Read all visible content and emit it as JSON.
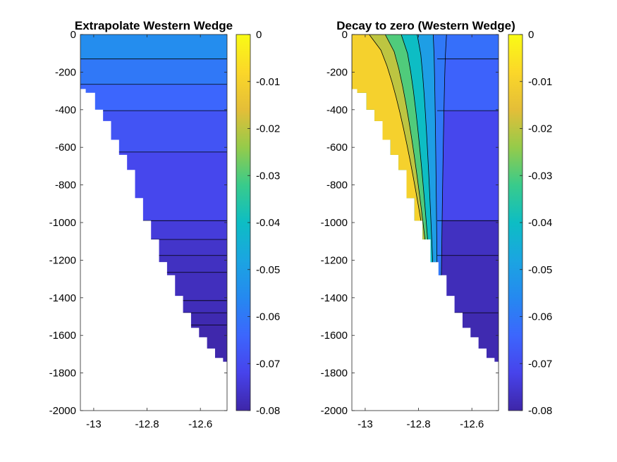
{
  "chart_data": [
    {
      "type": "heatmap",
      "title": "Extrapolate Western Wedge",
      "xlim": [
        -13.05,
        -12.5
      ],
      "ylim": [
        -2000,
        0
      ],
      "xticks": [
        -13,
        -12.8,
        -12.6
      ],
      "xtick_labels": [
        "-13",
        "-12.8",
        "-12.6"
      ],
      "yticks": [
        0,
        -200,
        -400,
        -600,
        -800,
        -1000,
        -1200,
        -1400,
        -1600,
        -1800,
        -2000
      ],
      "ytick_labels": [
        "0",
        "-200",
        "-400",
        "-600",
        "-800",
        "-1000",
        "-1200",
        "-1400",
        "-1600",
        "-1800",
        "-2000"
      ],
      "colorbar": {
        "range": [
          -0.08,
          0
        ],
        "ticks": [
          0,
          -0.01,
          -0.02,
          -0.03,
          -0.04,
          -0.05,
          -0.06,
          -0.07,
          -0.08
        ],
        "tick_labels": [
          "0",
          "-0.01",
          "-0.02",
          "-0.03",
          "-0.04",
          "-0.05",
          "-0.06",
          "-0.07",
          "-0.08"
        ],
        "colormap": "parula"
      },
      "bathymetry": [
        [
          -13.05,
          -270
        ],
        [
          -13.03,
          -290
        ],
        [
          -12.995,
          -310
        ],
        [
          -12.965,
          -400
        ],
        [
          -12.935,
          -460
        ],
        [
          -12.905,
          -560
        ],
        [
          -12.875,
          -640
        ],
        [
          -12.845,
          -720
        ],
        [
          -12.815,
          -870
        ],
        [
          -12.785,
          -990
        ],
        [
          -12.755,
          -1090
        ],
        [
          -12.725,
          -1210
        ],
        [
          -12.695,
          -1280
        ],
        [
          -12.665,
          -1390
        ],
        [
          -12.635,
          -1480
        ],
        [
          -12.605,
          -1560
        ],
        [
          -12.575,
          -1610
        ],
        [
          -12.545,
          -1670
        ],
        [
          -12.515,
          -1720
        ],
        [
          -12.5,
          -1740
        ]
      ],
      "levels": [
        {
          "z_top": 0,
          "z_bottom": -130,
          "value": -0.055
        },
        {
          "z_top": -130,
          "z_bottom": -265,
          "value": -0.06
        },
        {
          "z_top": -265,
          "z_bottom": -405,
          "value": -0.064
        },
        {
          "z_top": -405,
          "z_bottom": -625,
          "value": -0.068
        },
        {
          "z_top": -625,
          "z_bottom": -990,
          "value": -0.071
        },
        {
          "z_top": -990,
          "z_bottom": -1090,
          "value": -0.074
        },
        {
          "z_top": -1090,
          "z_bottom": -1175,
          "value": -0.076
        },
        {
          "z_top": -1175,
          "z_bottom": -1265,
          "value": -0.077
        },
        {
          "z_top": -1265,
          "z_bottom": -1415,
          "value": -0.0775
        },
        {
          "z_top": -1415,
          "z_bottom": -1480,
          "value": -0.078
        },
        {
          "z_top": -1480,
          "z_bottom": -1545,
          "value": -0.079
        },
        {
          "z_top": -1545,
          "z_bottom": -1800,
          "value": -0.0795
        }
      ]
    },
    {
      "type": "heatmap",
      "title": "Decay to zero (Western Wedge)",
      "xlim": [
        -13.05,
        -12.5
      ],
      "ylim": [
        -2000,
        0
      ],
      "xticks": [
        -13,
        -12.8,
        -12.6
      ],
      "xtick_labels": [
        "-13",
        "-12.8",
        "-12.6"
      ],
      "yticks": [
        0,
        -200,
        -400,
        -600,
        -800,
        -1000,
        -1200,
        -1400,
        -1600,
        -1800,
        -2000
      ],
      "ytick_labels": [
        "0",
        "-200",
        "-400",
        "-600",
        "-800",
        "-1000",
        "-1200",
        "-1400",
        "-1600",
        "-1800",
        "-2000"
      ],
      "colorbar": {
        "range": [
          -0.08,
          0
        ],
        "ticks": [
          0,
          -0.01,
          -0.02,
          -0.03,
          -0.04,
          -0.05,
          -0.06,
          -0.07,
          -0.08
        ],
        "tick_labels": [
          "0",
          "-0.01",
          "-0.02",
          "-0.03",
          "-0.04",
          "-0.05",
          "-0.06",
          "-0.07",
          "-0.08"
        ],
        "colormap": "parula"
      },
      "bathymetry": [
        [
          -13.05,
          -270
        ],
        [
          -13.03,
          -290
        ],
        [
          -12.995,
          -310
        ],
        [
          -12.965,
          -400
        ],
        [
          -12.935,
          -460
        ],
        [
          -12.905,
          -560
        ],
        [
          -12.875,
          -640
        ],
        [
          -12.845,
          -720
        ],
        [
          -12.815,
          -870
        ],
        [
          -12.785,
          -990
        ],
        [
          -12.755,
          -1090
        ],
        [
          -12.725,
          -1210
        ],
        [
          -12.695,
          -1280
        ],
        [
          -12.665,
          -1390
        ],
        [
          -12.635,
          -1480
        ],
        [
          -12.605,
          -1560
        ],
        [
          -12.575,
          -1610
        ],
        [
          -12.545,
          -1670
        ],
        [
          -12.515,
          -1720
        ],
        [
          -12.5,
          -1740
        ]
      ],
      "decay_fronts": [
        {
          "x_surface": -12.985,
          "x_deep": -12.79,
          "z_deep": -1000,
          "value": -0.01
        },
        {
          "x_surface": -12.925,
          "x_deep": -12.775,
          "z_deep": -1100,
          "value": -0.02
        },
        {
          "x_surface": -12.865,
          "x_deep": -12.76,
          "z_deep": -1200,
          "value": -0.03
        },
        {
          "x_surface": -12.805,
          "x_deep": -12.745,
          "z_deep": -1280,
          "value": -0.04
        },
        {
          "x_surface": -12.745,
          "x_deep": -12.73,
          "z_deep": -1330,
          "value": -0.05
        },
        {
          "x_surface": -12.695,
          "x_deep": -12.715,
          "z_deep": -1360,
          "value": -0.06
        }
      ],
      "offshore_levels": [
        {
          "z_top": 0,
          "z_bottom": -130,
          "value": -0.062
        },
        {
          "z_top": -130,
          "z_bottom": -405,
          "value": -0.065
        },
        {
          "z_top": -405,
          "z_bottom": -990,
          "value": -0.071
        },
        {
          "z_top": -990,
          "z_bottom": -1175,
          "value": -0.077
        },
        {
          "z_top": -1175,
          "z_bottom": -1480,
          "value": -0.078
        },
        {
          "z_top": -1480,
          "z_bottom": -1800,
          "value": -0.079
        }
      ]
    }
  ]
}
